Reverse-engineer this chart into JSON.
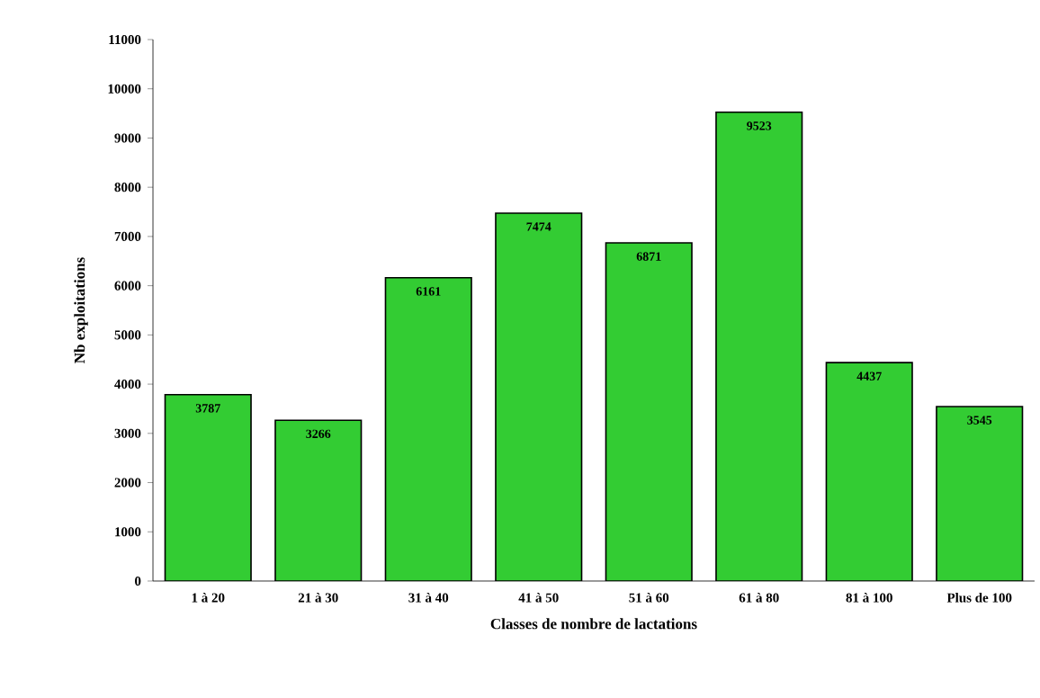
{
  "chart_data": {
    "type": "bar",
    "xlabel": "Classes de nombre de lactations",
    "ylabel": "Nb exploitations",
    "categories": [
      "1 à 20",
      "21 à 30",
      "31 à 40",
      "41 à 50",
      "51 à 60",
      "61 à 80",
      "81 à 100",
      "Plus de 100"
    ],
    "values": [
      3787,
      3266,
      6161,
      7474,
      6871,
      9523,
      4437,
      3545
    ],
    "color": "#33cc33",
    "ylim": [
      0,
      11000
    ],
    "yticks": [
      0,
      1000,
      2000,
      3000,
      4000,
      5000,
      6000,
      7000,
      8000,
      9000,
      10000,
      11000
    ],
    "data_labels": true,
    "grid": false
  }
}
